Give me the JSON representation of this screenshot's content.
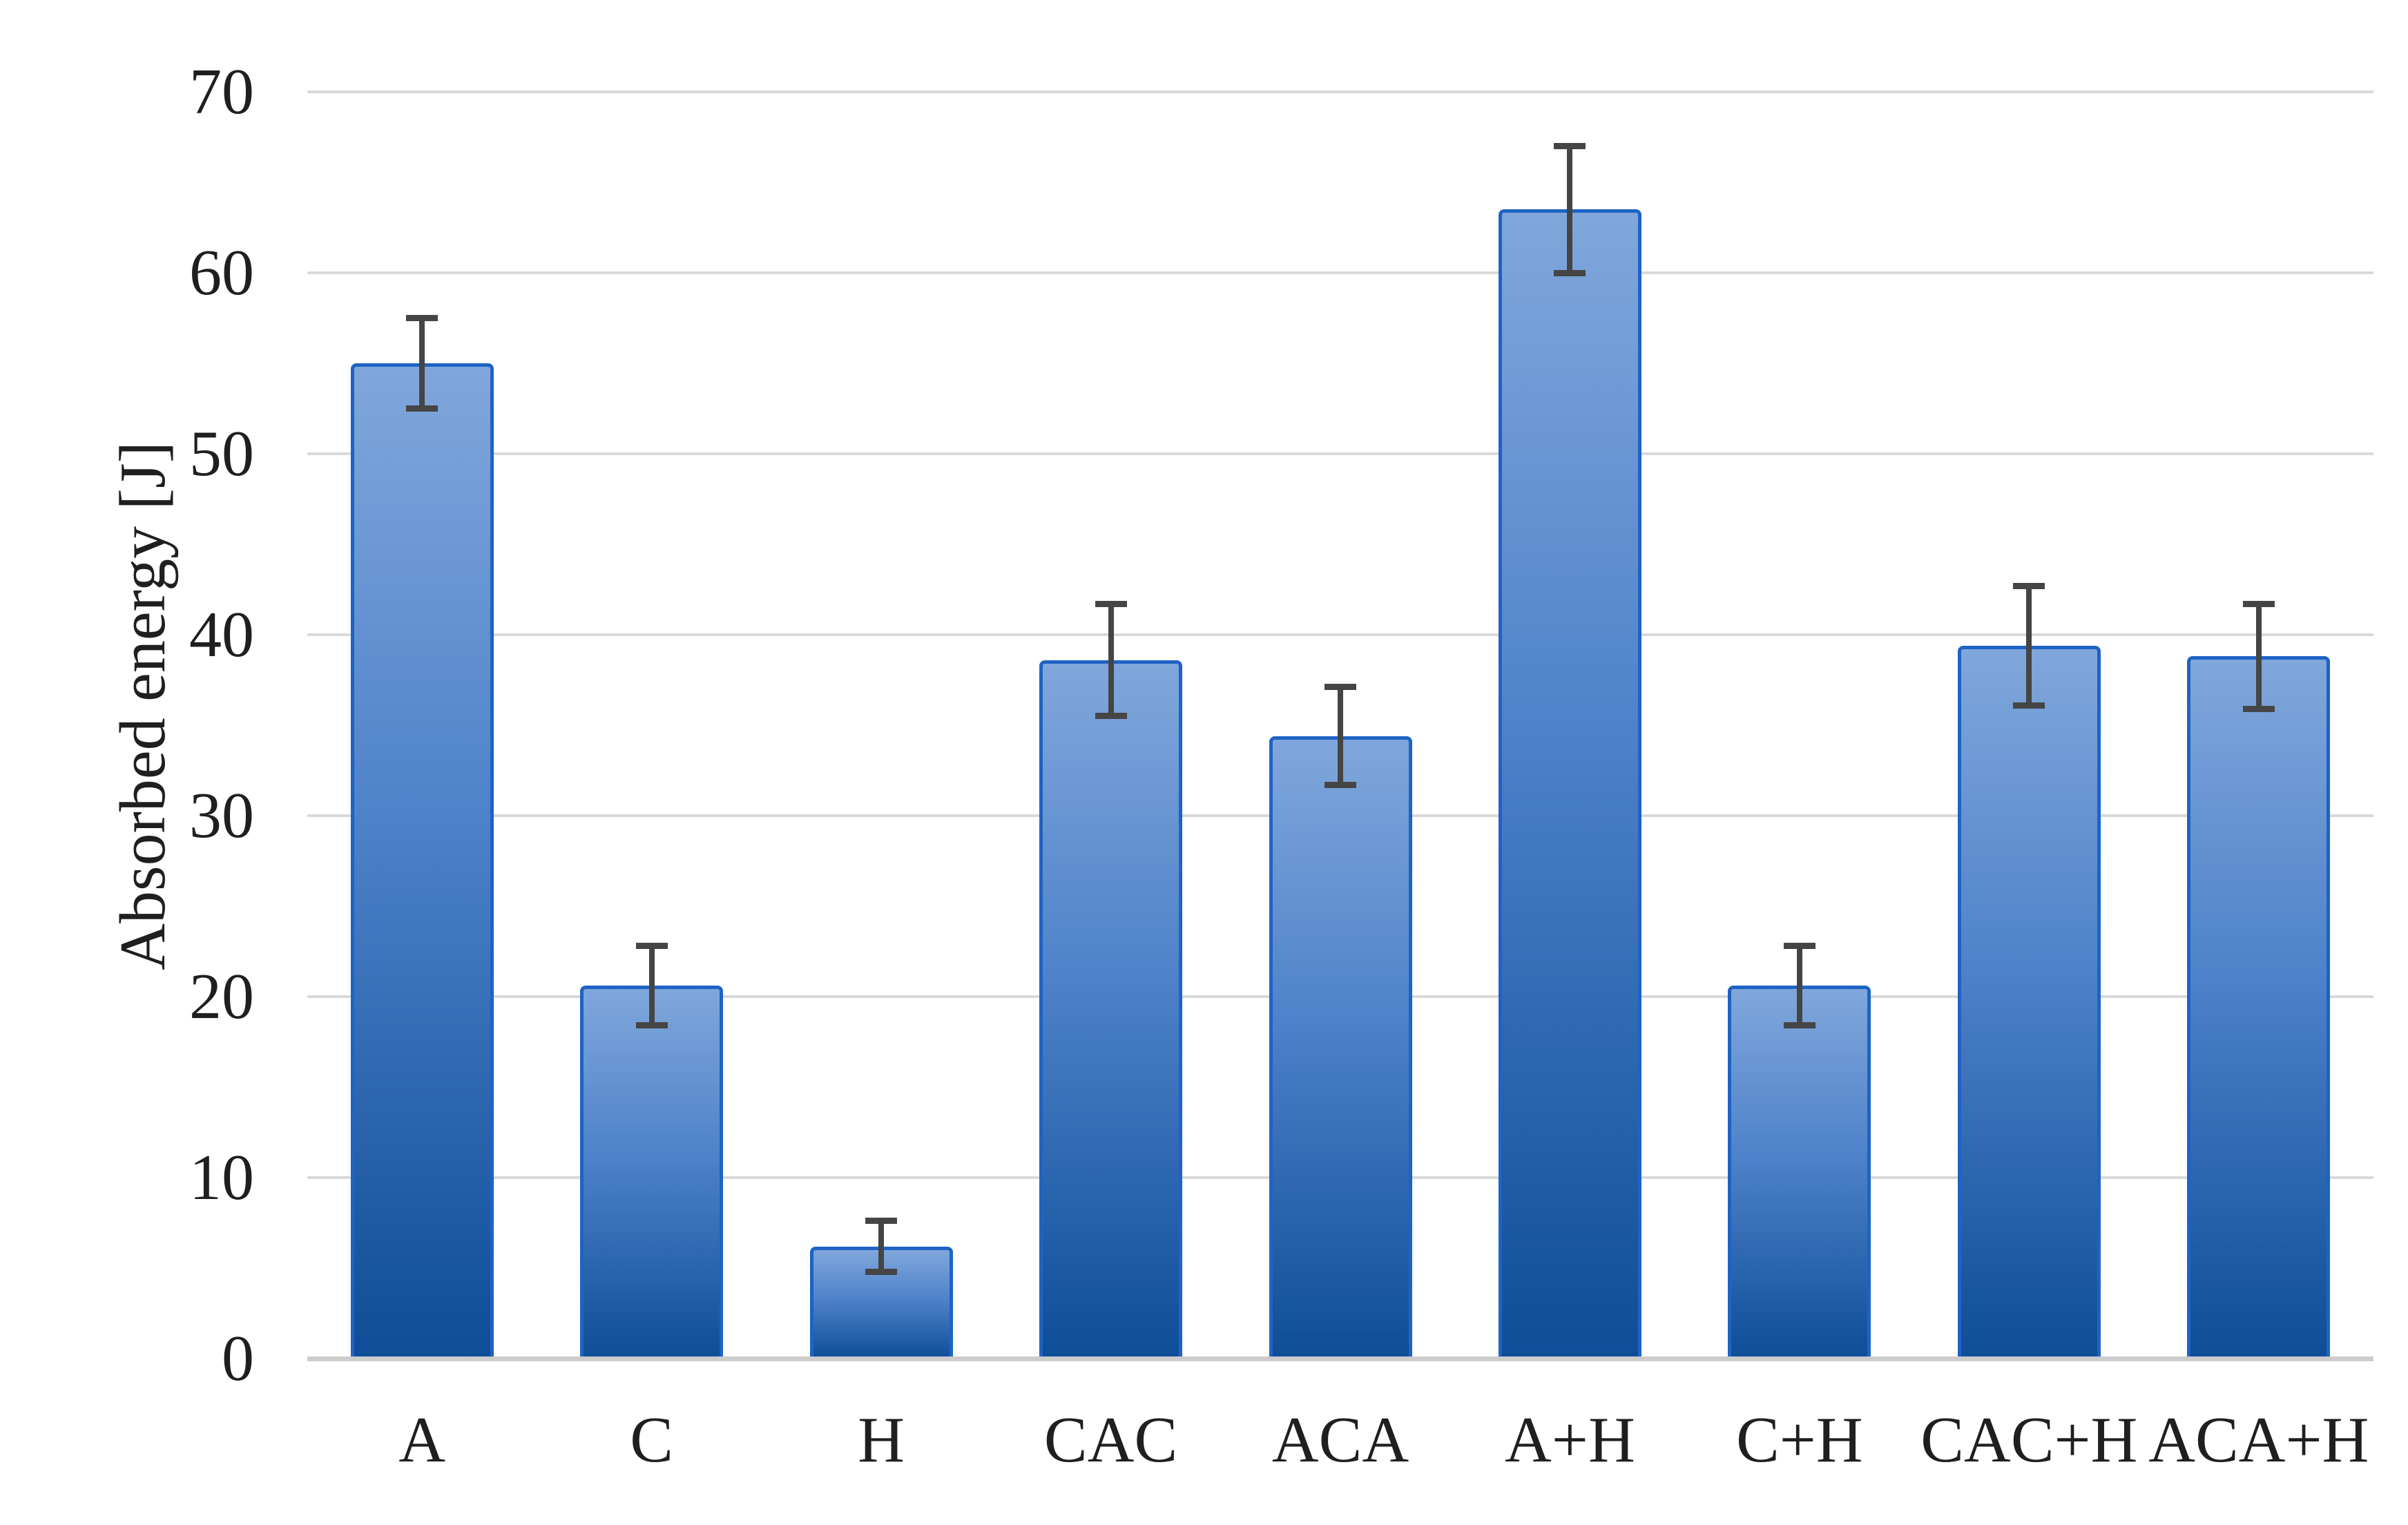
{
  "chart_data": {
    "type": "bar",
    "title": "",
    "xlabel": "",
    "ylabel": "Absorbed energy [J]",
    "categories": [
      "A",
      "C",
      "H",
      "CAC",
      "ACA",
      "A+H",
      "C+H",
      "CAC+H",
      "ACA+H"
    ],
    "values": [
      55.0,
      20.6,
      6.2,
      38.6,
      34.4,
      63.5,
      20.6,
      39.4,
      38.8
    ],
    "error_bars": {
      "plus": [
        2.5,
        2.2,
        1.4,
        3.1,
        2.7,
        3.5,
        2.2,
        3.3,
        2.9
      ],
      "minus": [
        2.5,
        2.2,
        1.4,
        3.1,
        2.7,
        3.5,
        2.2,
        3.3,
        2.9
      ]
    },
    "ylim": [
      0,
      70
    ],
    "yticks": [
      0,
      10,
      20,
      30,
      40,
      50,
      60,
      70
    ],
    "grid": "horizontal",
    "legend": "none",
    "series_name": "Absorbed energy"
  },
  "colors": {
    "text": "#1f1f1f",
    "gridline": "#d9d9d9",
    "axis_line": "#cccccc",
    "bar_border": "#1e63c5",
    "bar_fill_top": "#80a7db",
    "bar_fill_mid": "#4e82ca",
    "bar_fill_bottom": "#0e4d97",
    "error_bar": "#454545",
    "background": "#ffffff"
  }
}
